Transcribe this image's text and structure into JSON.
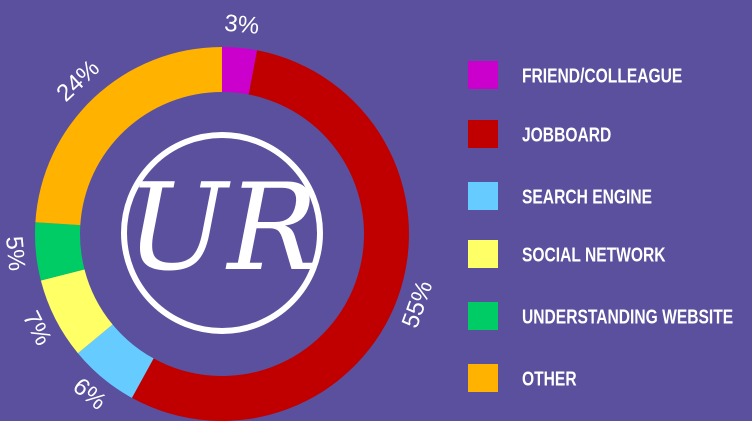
{
  "chart_data": {
    "type": "donut",
    "logo": "UR",
    "categories": [
      "FRIEND/COLLEAGUE",
      "JOBBOARD",
      "SEARCH ENGINE",
      "SOCIAL NETWORK",
      "UNDERSTANDING WEBSITE",
      "OTHER"
    ],
    "values": [
      3,
      55,
      6,
      7,
      5,
      24
    ],
    "value_labels": [
      "3%",
      "55%",
      "6%",
      "7%",
      "5%",
      "24%"
    ],
    "colors": [
      "#cc00cc",
      "#c00000",
      "#66ccff",
      "#ffff66",
      "#00cc66",
      "#ffb300"
    ]
  }
}
